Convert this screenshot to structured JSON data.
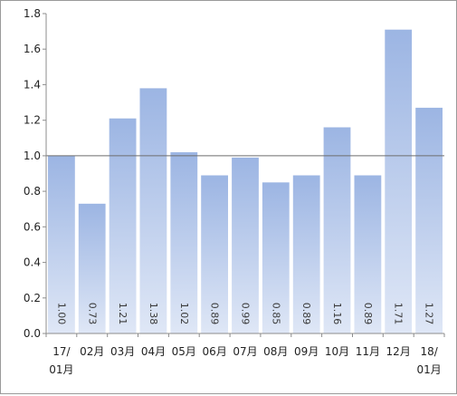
{
  "chart_data": {
    "type": "bar",
    "title": "",
    "xlabel": "",
    "ylabel": "",
    "categories": [
      "17/01月",
      "02月",
      "03月",
      "04月",
      "05月",
      "06月",
      "07月",
      "08月",
      "09月",
      "10月",
      "11月",
      "12月",
      "18/01月"
    ],
    "category_lines": [
      [
        "17/",
        "01月"
      ],
      [
        "02月"
      ],
      [
        "03月"
      ],
      [
        "04月"
      ],
      [
        "05月"
      ],
      [
        "06月"
      ],
      [
        "07月"
      ],
      [
        "08月"
      ],
      [
        "09月"
      ],
      [
        "10月"
      ],
      [
        "11月"
      ],
      [
        "12月"
      ],
      [
        "18/",
        "01月"
      ]
    ],
    "values": [
      1.0,
      0.73,
      1.21,
      1.38,
      1.02,
      0.89,
      0.99,
      0.85,
      0.89,
      1.16,
      0.89,
      1.71,
      1.27
    ],
    "data_labels": [
      "1.00",
      "0.73",
      "1.21",
      "1.38",
      "1.02",
      "0.89",
      "0.99",
      "0.85",
      "0.89",
      "1.16",
      "0.89",
      "1.71",
      "1.27"
    ],
    "y_ticks": [
      "0.0",
      "0.2",
      "0.4",
      "0.6",
      "0.8",
      "1.0",
      "1.2",
      "1.4",
      "1.6",
      "1.8"
    ],
    "ylim": [
      0,
      1.8
    ],
    "reference_line": 1.0,
    "grid": false,
    "legend": "none",
    "colors": {
      "bar_top": "#9cb5e3",
      "bar_bottom": "#dfe7f6",
      "axis": "#8c8c8c",
      "reference_line": "#6e6e6e",
      "frame": "#9a9a9a"
    }
  }
}
